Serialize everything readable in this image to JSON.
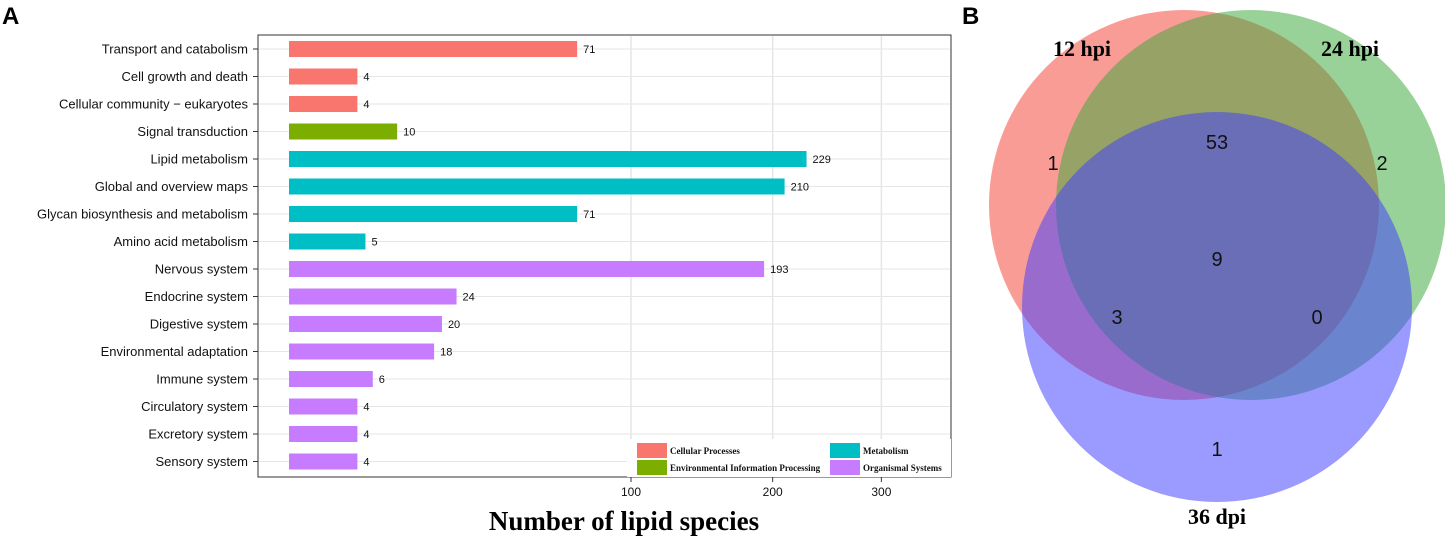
{
  "panel_a_label": "A",
  "panel_b_label": "B",
  "chart_data": [
    {
      "type": "bar",
      "orientation": "horizontal",
      "xlabel": "Number of lipid species",
      "x_ticks": [
        "100",
        "200",
        "300"
      ],
      "x_tick_values": [
        100,
        200,
        300
      ],
      "categories": [
        "Transport and catabolism",
        "Cell growth and death",
        "Cellular community − eukaryotes",
        "Signal transduction",
        "Lipid metabolism",
        "Global and overview maps",
        "Glycan biosynthesis and metabolism",
        "Amino acid metabolism",
        "Nervous system",
        "Endocrine system",
        "Digestive system",
        "Environmental adaptation",
        "Immune system",
        "Circulatory system",
        "Excretory system",
        "Sensory system"
      ],
      "values": [
        71,
        4,
        4,
        10,
        229,
        210,
        71,
        5,
        193,
        24,
        20,
        18,
        6,
        4,
        4,
        4
      ],
      "groups": [
        "Cellular Processes",
        "Cellular Processes",
        "Cellular Processes",
        "Environmental Information Processing",
        "Metabolism",
        "Metabolism",
        "Metabolism",
        "Metabolism",
        "Organismal Systems",
        "Organismal Systems",
        "Organismal Systems",
        "Organismal Systems",
        "Organismal Systems",
        "Organismal Systems",
        "Organismal Systems",
        "Organismal Systems"
      ],
      "legend": [
        {
          "name": "Cellular Processes",
          "color": "#F8766D"
        },
        {
          "name": "Environmental Information Processing",
          "color": "#7CAE00"
        },
        {
          "name": "Metabolism",
          "color": "#00BFC4"
        },
        {
          "name": "Organismal Systems",
          "color": "#C77CFF"
        }
      ],
      "legend_position": "bottom-right",
      "grid": true
    },
    {
      "type": "venn",
      "sets": [
        "12 hpi",
        "24 hpi",
        "36 dpi"
      ],
      "set_colors": [
        "#F8766D",
        "#3CA83C",
        "#4040FF"
      ],
      "regions": {
        "12 hpi only": "1",
        "24 hpi only": "2",
        "36 dpi only": "1",
        "12 hpi & 24 hpi": "53",
        "12 hpi & 36 dpi": "3",
        "24 hpi & 36 dpi": "0",
        "all three": "9"
      }
    }
  ]
}
